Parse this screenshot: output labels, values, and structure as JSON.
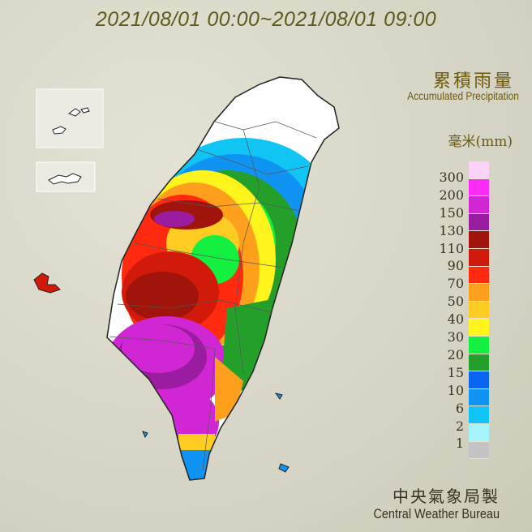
{
  "header": {
    "period": "2021/08/01 00:00~2021/08/01 09:00"
  },
  "title": {
    "zh": "累積雨量",
    "en": "Accumulated Precipitation"
  },
  "legend": {
    "unit": "毫米(mm)",
    "levels": [
      {
        "label": "",
        "color": "#fbd3f8"
      },
      {
        "label": "300",
        "color": "#fb2cf6"
      },
      {
        "label": "200",
        "color": "#d126d4"
      },
      {
        "label": "150",
        "color": "#9a1ca0"
      },
      {
        "label": "130",
        "color": "#a0140c"
      },
      {
        "label": "110",
        "color": "#d21a0a"
      },
      {
        "label": "90",
        "color": "#ff2a10"
      },
      {
        "label": "70",
        "color": "#ffa01c"
      },
      {
        "label": "50",
        "color": "#ffcc24"
      },
      {
        "label": "40",
        "color": "#fff41c"
      },
      {
        "label": "30",
        "color": "#14f040"
      },
      {
        "label": "20",
        "color": "#24a02a"
      },
      {
        "label": "15",
        "color": "#0a64f4"
      },
      {
        "label": "10",
        "color": "#1094f4"
      },
      {
        "label": "6",
        "color": "#10c4f4"
      },
      {
        "label": "2",
        "color": "#a4f4fa"
      },
      {
        "label": "1",
        "color": "#c4c4c4"
      }
    ]
  },
  "footer": {
    "zh": "中央氣象局製",
    "en": "Central Weather Bureau"
  }
}
